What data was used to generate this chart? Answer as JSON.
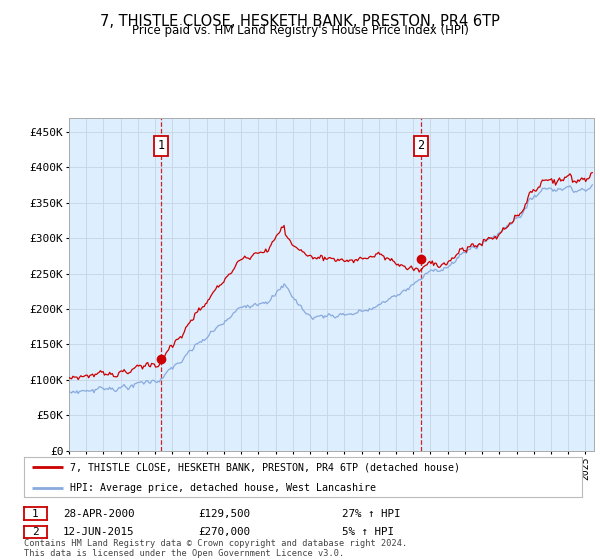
{
  "title": "7, THISTLE CLOSE, HESKETH BANK, PRESTON, PR4 6TP",
  "subtitle": "Price paid vs. HM Land Registry's House Price Index (HPI)",
  "legend_line1": "7, THISTLE CLOSE, HESKETH BANK, PRESTON, PR4 6TP (detached house)",
  "legend_line2": "HPI: Average price, detached house, West Lancashire",
  "annotation1_date": "28-APR-2000",
  "annotation1_price": "£129,500",
  "annotation1_hpi": "27% ↑ HPI",
  "annotation2_date": "12-JUN-2015",
  "annotation2_price": "£270,000",
  "annotation2_hpi": "5% ↑ HPI",
  "footer": "Contains HM Land Registry data © Crown copyright and database right 2024.\nThis data is licensed under the Open Government Licence v3.0.",
  "sale_color": "#cc0000",
  "hpi_color": "#88aadd",
  "plot_bg_color": "#ddeeff",
  "ylim": [
    0,
    470000
  ],
  "yticks": [
    0,
    50000,
    100000,
    150000,
    200000,
    250000,
    300000,
    350000,
    400000,
    450000
  ],
  "sale1_x": 2000.33,
  "sale1_y": 129500,
  "sale2_x": 2015.45,
  "sale2_y": 270000,
  "vline1_x": 2000.33,
  "vline2_x": 2015.45,
  "xmin": 1995,
  "xmax": 2025.5
}
